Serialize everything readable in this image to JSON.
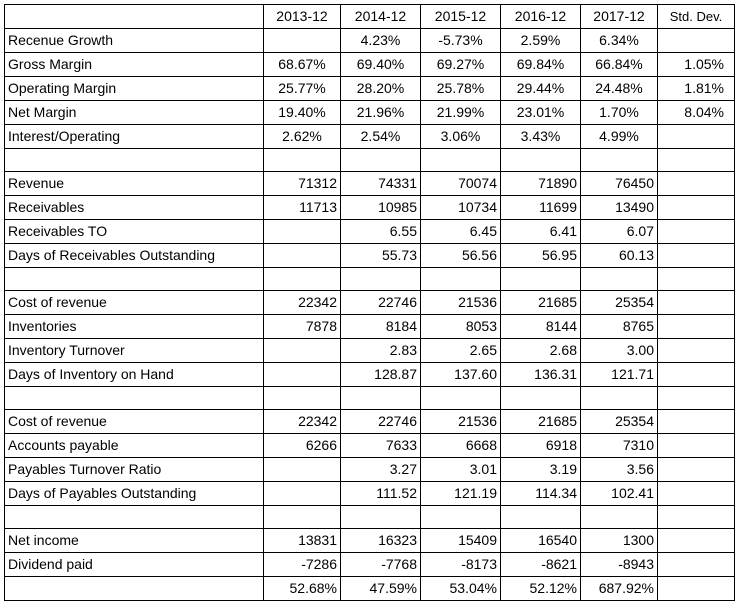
{
  "headers": [
    "",
    "2013-12",
    "2014-12",
    "2015-12",
    "2016-12",
    "2017-12",
    "Std. Dev."
  ],
  "rows": [
    {
      "cells": [
        "Recenue Growth",
        "",
        "4.23%",
        "-5.73%",
        "2.59%",
        "6.34%",
        ""
      ],
      "align": "center"
    },
    {
      "cells": [
        "Gross Margin",
        "68.67%",
        "69.40%",
        "69.27%",
        "69.84%",
        "66.84%",
        "1.05%"
      ],
      "align": "center"
    },
    {
      "cells": [
        "Operating Margin",
        "25.77%",
        "28.20%",
        "25.78%",
        "29.44%",
        "24.48%",
        "1.81%"
      ],
      "align": "center"
    },
    {
      "cells": [
        "Net Margin",
        "19.40%",
        "21.96%",
        "21.99%",
        "23.01%",
        "1.70%",
        "8.04%"
      ],
      "align": "center"
    },
    {
      "cells": [
        "Interest/Operating",
        "2.62%",
        "2.54%",
        "3.06%",
        "3.43%",
        "4.99%",
        ""
      ],
      "align": "center"
    },
    {
      "cells": [
        "",
        "",
        "",
        "",
        "",
        "",
        ""
      ],
      "align": "center"
    },
    {
      "cells": [
        "Revenue",
        "71312",
        "74331",
        "70074",
        "71890",
        "76450",
        ""
      ],
      "align": "right"
    },
    {
      "cells": [
        "Receivables",
        "11713",
        "10985",
        "10734",
        "11699",
        "13490",
        ""
      ],
      "align": "right"
    },
    {
      "cells": [
        "Receivables TO",
        "",
        "6.55",
        "6.45",
        "6.41",
        "6.07",
        ""
      ],
      "align": "right"
    },
    {
      "cells": [
        "Days of Receivables Outstanding",
        "",
        "55.73",
        "56.56",
        "56.95",
        "60.13",
        ""
      ],
      "align": "right"
    },
    {
      "cells": [
        "",
        "",
        "",
        "",
        "",
        "",
        ""
      ],
      "align": "right"
    },
    {
      "cells": [
        "Cost of revenue",
        "22342",
        "22746",
        "21536",
        "21685",
        "25354",
        ""
      ],
      "align": "right"
    },
    {
      "cells": [
        "Inventories",
        "7878",
        "8184",
        "8053",
        "8144",
        "8765",
        ""
      ],
      "align": "right"
    },
    {
      "cells": [
        "Inventory Turnover",
        "",
        "2.83",
        "2.65",
        "2.68",
        "3.00",
        ""
      ],
      "align": "right"
    },
    {
      "cells": [
        "Days of Inventory on Hand",
        "",
        "128.87",
        "137.60",
        "136.31",
        "121.71",
        ""
      ],
      "align": "right"
    },
    {
      "cells": [
        "",
        "",
        "",
        "",
        "",
        "",
        ""
      ],
      "align": "right"
    },
    {
      "cells": [
        "Cost of revenue",
        "22342",
        "22746",
        "21536",
        "21685",
        "25354",
        ""
      ],
      "align": "right"
    },
    {
      "cells": [
        "Accounts payable",
        "6266",
        "7633",
        "6668",
        "6918",
        "7310",
        ""
      ],
      "align": "right"
    },
    {
      "cells": [
        "Payables Turnover Ratio",
        "",
        "3.27",
        "3.01",
        "3.19",
        "3.56",
        ""
      ],
      "align": "right"
    },
    {
      "cells": [
        "Days of Payables Outstanding",
        "",
        "111.52",
        "121.19",
        "114.34",
        "102.41",
        ""
      ],
      "align": "right"
    },
    {
      "cells": [
        "",
        "",
        "",
        "",
        "",
        "",
        ""
      ],
      "align": "right"
    },
    {
      "cells": [
        "Net income",
        "13831",
        "16323",
        "15409",
        "16540",
        "1300",
        ""
      ],
      "align": "right"
    },
    {
      "cells": [
        "Dividend paid",
        "-7286",
        "-7768",
        "-8173",
        "-8621",
        "-8943",
        ""
      ],
      "align": "right"
    },
    {
      "cells": [
        "",
        "52.68%",
        "47.59%",
        "53.04%",
        "52.12%",
        "687.92%",
        ""
      ],
      "align": "right"
    }
  ]
}
